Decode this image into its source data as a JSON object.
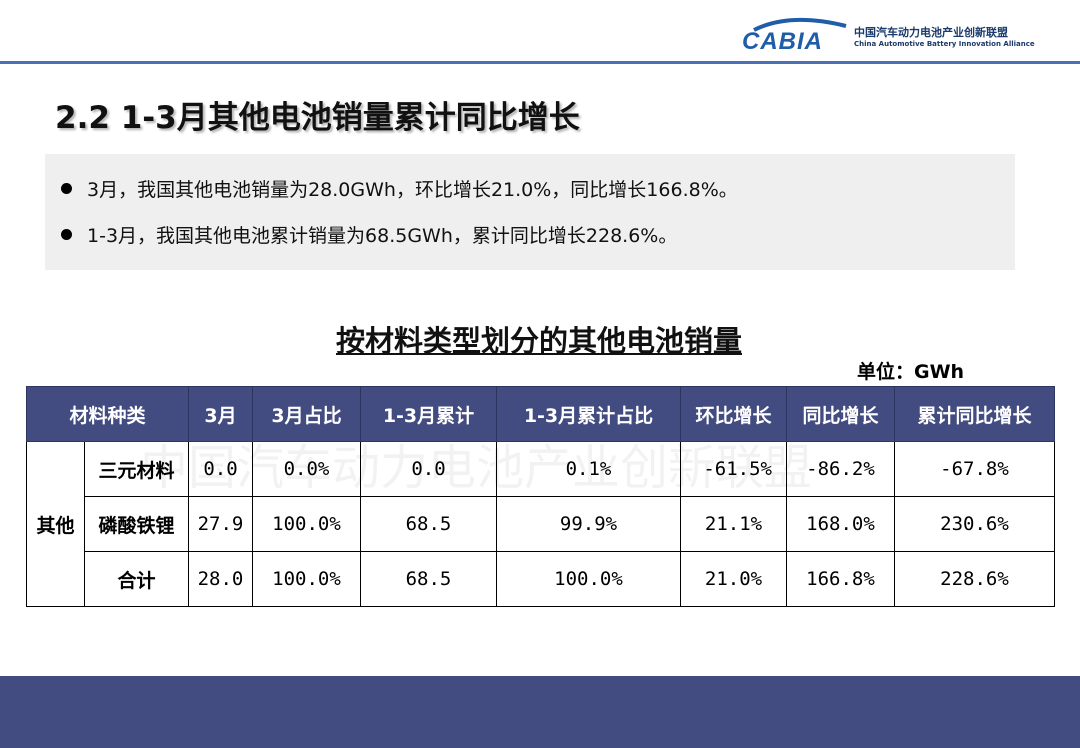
{
  "header": {
    "logo_text": "CABIA",
    "org_name_cn": "中国汽车动力电池产业创新联盟",
    "org_name_en": "China Automotive Battery Innovation Alliance"
  },
  "page_title": "2.2 1-3月其他电池销量累计同比增长",
  "summary": {
    "bullets": [
      "3月，我国其他电池销量为28.0GWh，环比增长21.0%，同比增长166.8%。",
      "1-3月，我国其他电池累计销量为68.5GWh，累计同比增长228.6%。"
    ]
  },
  "table": {
    "title": "按材料类型划分的其他电池销量",
    "unit": "单位：GWh",
    "watermark": "中国汽车动力电池产业创新联盟",
    "headers": [
      "材料种类",
      "3月",
      "3月占比",
      "1-3月累计",
      "1-3月累计占比",
      "环比增长",
      "同比增长",
      "累计同比增长"
    ],
    "group_label": "其他",
    "rows": [
      {
        "material": "三元材料",
        "mar": "0.0",
        "mar_share": "0.0%",
        "ytd": "0.0",
        "ytd_share": "0.1%",
        "mom": "-61.5%",
        "yoy": "-86.2%",
        "ytd_yoy": "-67.8%"
      },
      {
        "material": "磷酸铁锂",
        "mar": "27.9",
        "mar_share": "100.0%",
        "ytd": "68.5",
        "ytd_share": "99.9%",
        "mom": "21.1%",
        "yoy": "168.0%",
        "ytd_yoy": "230.6%"
      },
      {
        "material": "合计",
        "mar": "28.0",
        "mar_share": "100.0%",
        "ytd": "68.5",
        "ytd_share": "100.0%",
        "mom": "21.0%",
        "yoy": "166.8%",
        "ytd_yoy": "228.6%"
      }
    ]
  },
  "colors": {
    "header_fill": "#434c80",
    "accent_line": "#4a6fb5",
    "summary_bg": "#efefef"
  }
}
